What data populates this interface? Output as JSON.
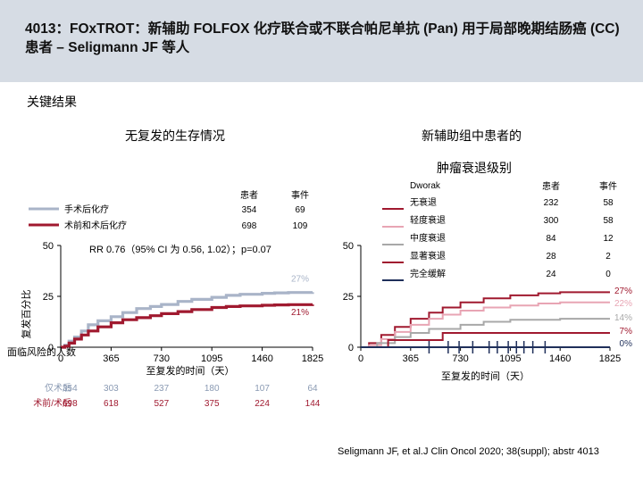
{
  "header": {
    "title": "4013：FOxTROT：新辅助 FOLFOX 化疗联合或不联合帕尼单抗 (Pan) 用于局部晚期结肠癌 (CC) 患者 – Seligmann JF 等人"
  },
  "section_label": "关键结果",
  "citation": "Seligmann JF, et al.J Clin Oncol 2020; 38(suppl); abstr 4013",
  "chart_data": [
    {
      "type": "line",
      "step": true,
      "title": "无复发的生存情况",
      "xlabel": "至复发的时间（天）",
      "ylabel": "复发百分比",
      "xlim": [
        0,
        1825
      ],
      "ylim": [
        0,
        50
      ],
      "xticks": [
        "0",
        "365",
        "730",
        "1095",
        "1460",
        "1825"
      ],
      "yticks": [
        "0",
        "25",
        "50"
      ],
      "legend": {
        "col_patients": "患者",
        "col_events": "事件",
        "rows": [
          {
            "label": "手术后化疗",
            "patients": "354",
            "events": "69",
            "color": "#a9b4c8"
          },
          {
            "label": "术前和术后化疗",
            "patients": "698",
            "events": "109",
            "color": "#a0192f"
          }
        ]
      },
      "annotation": "RR 0.76（95% CI 为 0.56, 1.02）；p=0.07",
      "end_labels": [
        {
          "text": "27%",
          "color": "#a9b4c8"
        },
        {
          "text": "21%",
          "color": "#a0192f"
        }
      ],
      "series": [
        {
          "name": "手术后化疗",
          "color": "#a9b4c8",
          "x": [
            0,
            30,
            60,
            100,
            150,
            200,
            270,
            365,
            450,
            550,
            650,
            730,
            850,
            950,
            1095,
            1200,
            1300,
            1460,
            1550,
            1650,
            1825
          ],
          "y": [
            0,
            1,
            3,
            5,
            8,
            11,
            13,
            15,
            17,
            19,
            20,
            21,
            22.5,
            23.5,
            24.5,
            25.5,
            26,
            26.5,
            26.7,
            26.9,
            27
          ]
        },
        {
          "name": "术前和术后化疗",
          "color": "#a0192f",
          "x": [
            0,
            30,
            60,
            100,
            150,
            200,
            270,
            365,
            450,
            550,
            650,
            730,
            850,
            950,
            1095,
            1200,
            1300,
            1460,
            1550,
            1650,
            1825
          ],
          "y": [
            0,
            0.5,
            2,
            4,
            6,
            8,
            10,
            12,
            13.5,
            14.5,
            15.5,
            16.5,
            17.5,
            18.5,
            19.5,
            20,
            20.3,
            20.6,
            20.8,
            20.9,
            21
          ]
        }
      ],
      "risk_table": {
        "title": "面临风险的人数",
        "rows": [
          {
            "label": "仅术后",
            "color": "#8a9ab3",
            "values": [
              "354",
              "303",
              "237",
              "180",
              "107",
              "64"
            ]
          },
          {
            "label": "术前/术后",
            "color": "#a0192f",
            "values": [
              "698",
              "618",
              "527",
              "375",
              "224",
              "144"
            ]
          }
        ]
      }
    },
    {
      "type": "line",
      "step": true,
      "title": "新辅助组中患者的",
      "subtitle": "肿瘤衰退级别",
      "xlabel": "至复发的时间（天）",
      "xlim": [
        0,
        1825
      ],
      "ylim": [
        0,
        50
      ],
      "xticks": [
        "0",
        "365",
        "730",
        "1095",
        "1460",
        "1825"
      ],
      "yticks": [
        "0",
        "25",
        "50"
      ],
      "legend": {
        "title": "Dworak",
        "col_patients": "患者",
        "col_events": "事件",
        "rows": [
          {
            "label": "无衰退",
            "patients": "232",
            "events": "58",
            "color": "#a0192f"
          },
          {
            "label": "轻度衰退",
            "patients": "300",
            "events": "58",
            "color": "#e8a5b4"
          },
          {
            "label": "中度衰退",
            "patients": "84",
            "events": "12",
            "color": "#a8a8a8"
          },
          {
            "label": "显著衰退",
            "patients": "28",
            "events": "2",
            "color": "#a0192f"
          },
          {
            "label": "完全缓解",
            "patients": "24",
            "events": "0",
            "color": "#1f2f5a"
          }
        ]
      },
      "end_labels": [
        {
          "text": "27%",
          "color": "#a0192f"
        },
        {
          "text": "22%",
          "color": "#e8a5b4"
        },
        {
          "text": "14%",
          "color": "#a8a8a8"
        },
        {
          "text": "7%",
          "color": "#a0192f"
        },
        {
          "text": "0%",
          "color": "#1f2f5a"
        }
      ],
      "series": [
        {
          "name": "无衰退",
          "color": "#a0192f",
          "x": [
            0,
            60,
            150,
            250,
            365,
            500,
            600,
            730,
            900,
            1095,
            1300,
            1460,
            1825
          ],
          "y": [
            0,
            2,
            6,
            10,
            14,
            17,
            19.5,
            22,
            24,
            25.5,
            26.5,
            27,
            27
          ]
        },
        {
          "name": "轻度衰退",
          "color": "#e8a5b4",
          "x": [
            0,
            60,
            150,
            250,
            365,
            500,
            600,
            730,
            900,
            1095,
            1300,
            1460,
            1825
          ],
          "y": [
            0,
            1,
            4,
            7.5,
            11,
            14,
            16,
            18,
            19.5,
            20.5,
            21.5,
            22,
            22
          ]
        },
        {
          "name": "中度衰退",
          "color": "#a8a8a8",
          "x": [
            0,
            120,
            250,
            365,
            500,
            730,
            900,
            1095,
            1460,
            1825
          ],
          "y": [
            0,
            2,
            5,
            7,
            9,
            11,
            12.5,
            13.5,
            14,
            14
          ]
        },
        {
          "name": "显著衰退",
          "color": "#a0192f",
          "x": [
            0,
            200,
            365,
            600,
            900,
            1825
          ],
          "y": [
            0,
            3.5,
            3.5,
            7,
            7,
            7
          ]
        },
        {
          "name": "完全缓解",
          "color": "#1f2f5a",
          "x": [
            0,
            1825
          ],
          "y": [
            0,
            0
          ]
        }
      ]
    }
  ]
}
